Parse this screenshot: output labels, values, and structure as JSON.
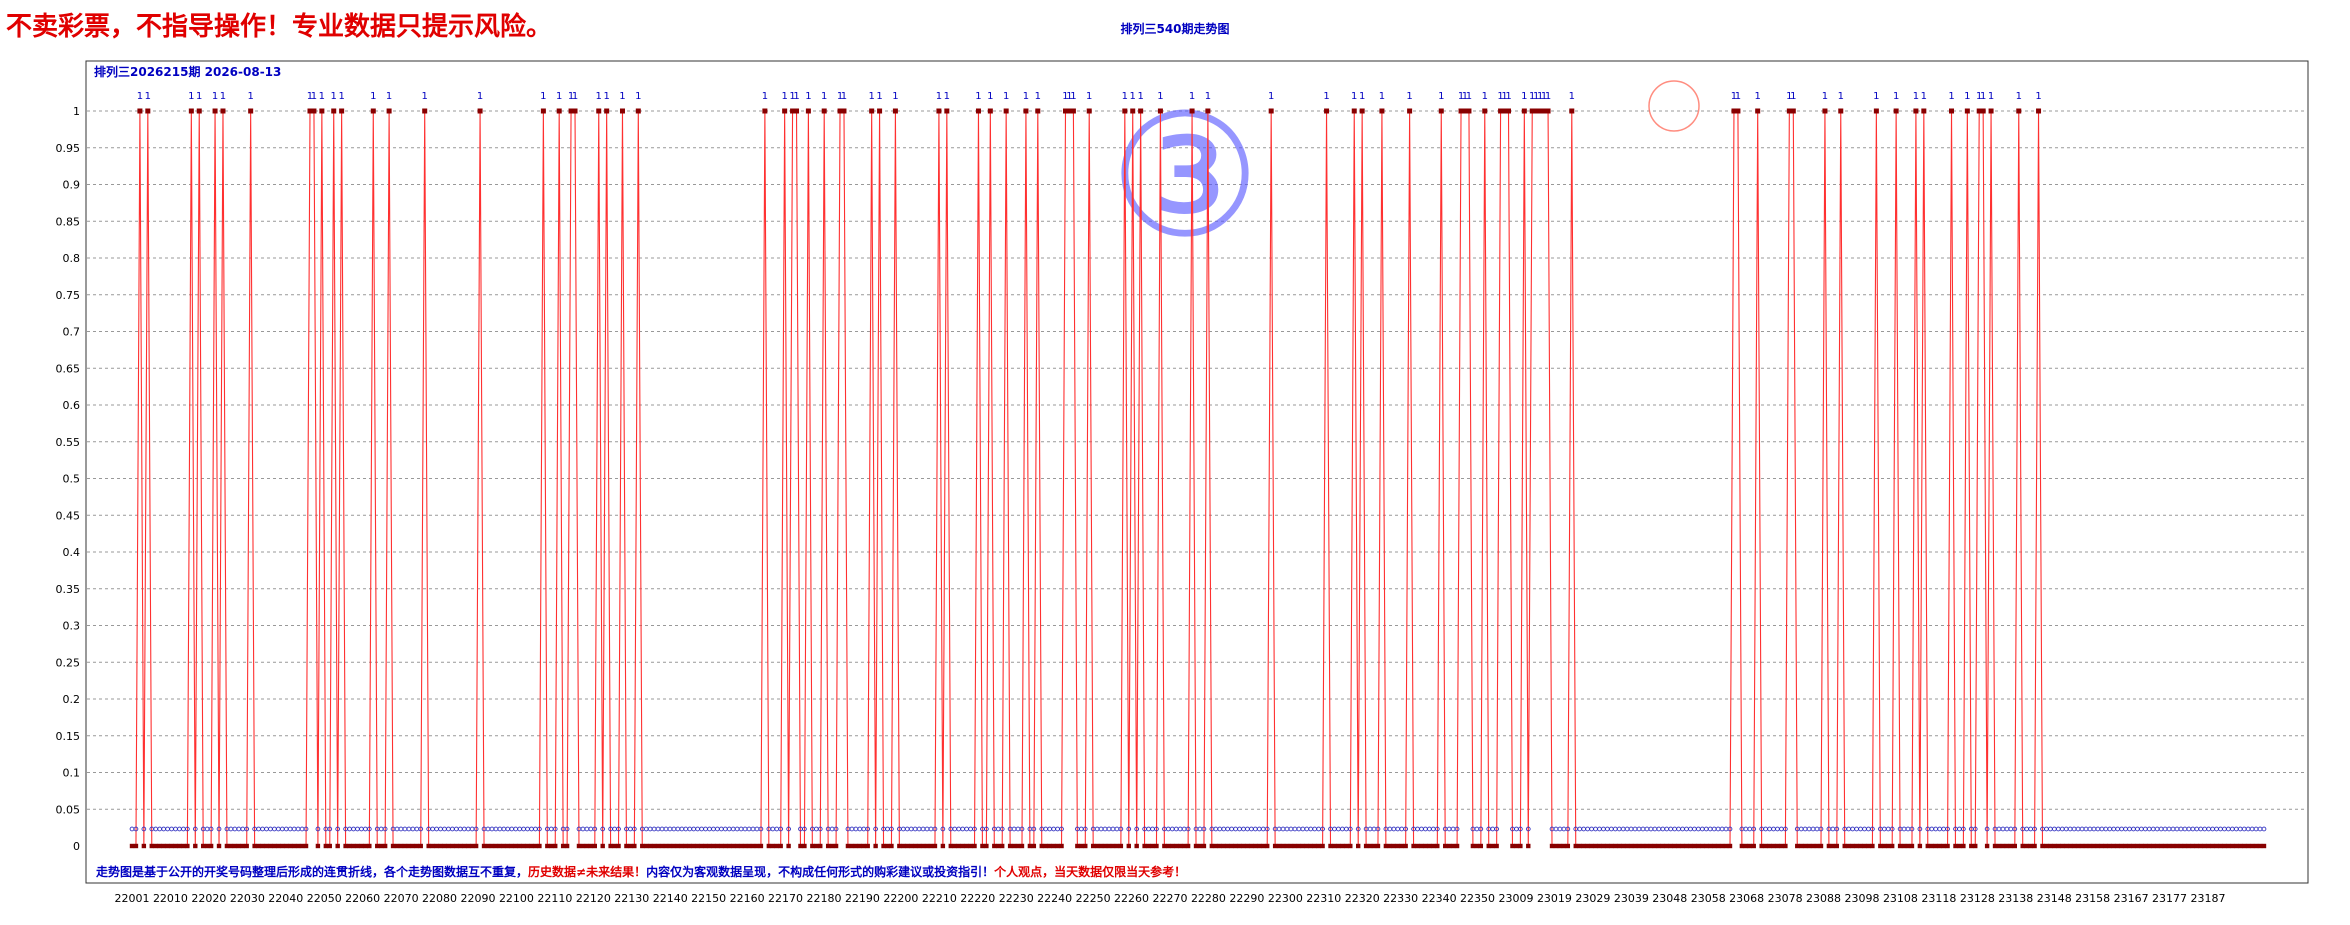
{
  "header": {
    "warning": "不卖彩票，不指导操作！专业数据只提示风险。",
    "chart_title": "排列三540期走势图"
  },
  "chart_data": {
    "type": "line",
    "title": "排列三540期走势图",
    "subtitle": "排列三2026215期 2026-08-13",
    "yticks": [
      "0",
      "0.05",
      "0.1",
      "0.15",
      "0.2",
      "0.25",
      "0.3",
      "0.35",
      "0.4",
      "0.45",
      "0.5",
      "0.55",
      "0.6",
      "0.65",
      "0.7",
      "0.75",
      "0.8",
      "0.85",
      "0.9",
      "0.95",
      "1"
    ],
    "ylim": [
      0,
      1
    ],
    "xticks": [
      "22001",
      "22010",
      "22020",
      "22030",
      "22040",
      "22050",
      "22060",
      "22070",
      "22080",
      "22090",
      "22100",
      "22110",
      "22120",
      "22130",
      "22140",
      "22150",
      "22160",
      "22170",
      "22180",
      "22190",
      "22200",
      "22210",
      "22220",
      "22230",
      "22240",
      "22250",
      "22260",
      "22270",
      "22280",
      "22290",
      "22300",
      "22310",
      "22320",
      "22330",
      "22340",
      "22350",
      "23009",
      "23019",
      "23029",
      "23039",
      "23048",
      "23058",
      "23068",
      "23078",
      "23088",
      "23098",
      "23108",
      "23118",
      "23128",
      "23138",
      "23148",
      "23158",
      "23167",
      "23177",
      "23187"
    ],
    "n_points": 540,
    "hit_indices": [
      2,
      4,
      15,
      17,
      21,
      23,
      30,
      45,
      46,
      48,
      51,
      53,
      61,
      65,
      74,
      88,
      104,
      108,
      111,
      112,
      118,
      120,
      124,
      128,
      160,
      165,
      167,
      168,
      171,
      175,
      179,
      180,
      187,
      189,
      193,
      204,
      206,
      214,
      217,
      221,
      226,
      229,
      236,
      237,
      238,
      242,
      251,
      253,
      255,
      260,
      268,
      272,
      288,
      302,
      309,
      311,
      316,
      323,
      331,
      336,
      337,
      338,
      342,
      346,
      347,
      348,
      352,
      354,
      355,
      356,
      357,
      358,
      364,
      405,
      406,
      411,
      419,
      420,
      428,
      432,
      441,
      446,
      451,
      453,
      460,
      464,
      467,
      468,
      470,
      477,
      482
    ],
    "hit_label": "1",
    "grid": true,
    "colors": {
      "line": "#ff3030",
      "hit_marker": "#880000",
      "miss_marker": "#3030c0",
      "grid": "#999999"
    },
    "overlay_mark": "③",
    "footnote": [
      {
        "text": "走势图是基于公开的开奖号码整理后形成的连贯折线，各个走势图数据互不重复，",
        "color": "#0000c0"
      },
      {
        "text": "历史数据≠未来结果！",
        "color": "#e00000"
      },
      {
        "text": "内容仅为客观数据呈现，不构成任何形式的购彩建议或投资指引！",
        "color": "#0000c0"
      },
      {
        "text": "个人观点，当天数据仅限当天参考！",
        "color": "#e00000"
      }
    ]
  }
}
